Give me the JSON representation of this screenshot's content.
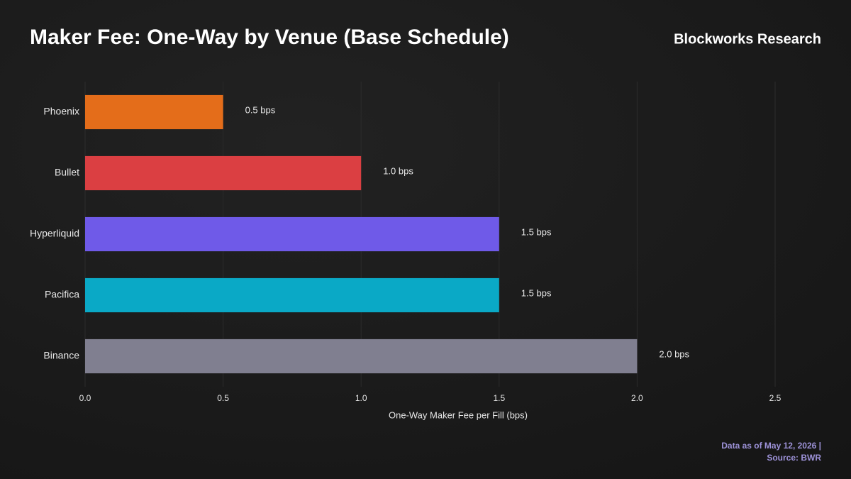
{
  "chart_data": {
    "type": "barh",
    "title": "Maker Fee: One-Way by Venue (Base Schedule)",
    "brand": "Blockworks Research",
    "footnote": [
      "Data as of May 12, 2026 |",
      "Source: BWR"
    ],
    "x_label": "One-Way Maker Fee per Fill (bps)",
    "categories": [
      "Phoenix",
      "Bullet",
      "Hyperliquid",
      "Pacifica",
      "Binance"
    ],
    "values": [
      0.5,
      1.0,
      1.5,
      1.5,
      2.0
    ],
    "value_labels": [
      "0.5 bps",
      "1.0 bps",
      "1.5 bps",
      "1.5 bps",
      "2.0 bps"
    ],
    "colors": [
      "#e46d1a",
      "#db3f42",
      "#6f5ae8",
      "#0aa9c6",
      "#807f90"
    ],
    "xlim": [
      0,
      2.5
    ],
    "xticks": [
      {
        "value": 0,
        "label": "0.0"
      },
      0.5,
      {
        "value": 1,
        "label": "1.0"
      },
      1.5,
      {
        "value": 2,
        "label": "2.0"
      },
      2.5
    ],
    "grid": true
  }
}
